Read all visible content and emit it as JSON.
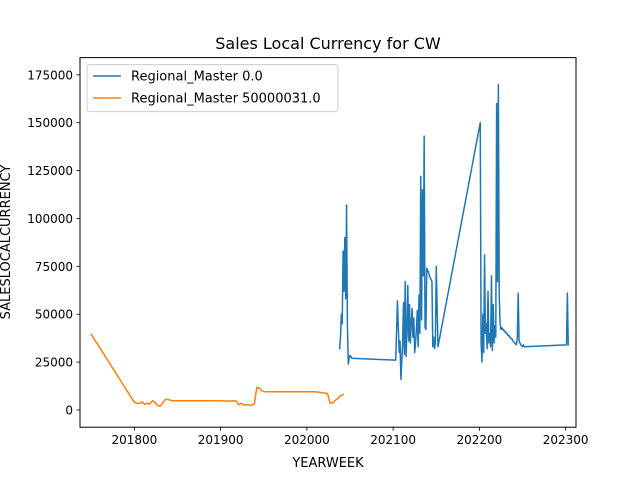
{
  "chart_data": {
    "type": "line",
    "title": "Sales Local Currency for CW",
    "xlabel": "YEARWEEK",
    "ylabel": "SALESLOCALCURRENCY",
    "xlim": [
      201737,
      202312
    ],
    "ylim": [
      -9000,
      184000
    ],
    "xticks": [
      201800,
      201900,
      202000,
      202100,
      202200,
      202300
    ],
    "yticks": [
      0,
      25000,
      50000,
      75000,
      100000,
      125000,
      150000,
      175000
    ],
    "grid": false,
    "legend": {
      "placement": "top-left"
    },
    "series": [
      {
        "name": "Regional_Master 0.0",
        "color": "#1f77b4",
        "x": [
          202038,
          202039,
          202040,
          202041,
          202042,
          202043,
          202044,
          202045,
          202046,
          202047,
          202048,
          202049,
          202050,
          202051,
          202052,
          202103,
          202105,
          202107,
          202108,
          202109,
          202110,
          202111,
          202112,
          202113,
          202114,
          202115,
          202116,
          202117,
          202118,
          202119,
          202120,
          202121,
          202122,
          202123,
          202124,
          202125,
          202126,
          202127,
          202128,
          202129,
          202130,
          202131,
          202132,
          202133,
          202134,
          202135,
          202136,
          202137,
          202138,
          202139,
          202140,
          202141,
          202142,
          202143,
          202144,
          202145,
          202146,
          202147,
          202148,
          202149,
          202150,
          202152,
          202201,
          202202,
          202203,
          202204,
          202205,
          202206,
          202207,
          202208,
          202209,
          202210,
          202211,
          202212,
          202213,
          202214,
          202215,
          202216,
          202217,
          202218,
          202219,
          202220,
          202221,
          202222,
          202223,
          202224,
          202225,
          202226,
          202227,
          202228,
          202229,
          202230,
          202231,
          202232,
          202233,
          202234,
          202235,
          202236,
          202237,
          202238,
          202239,
          202240,
          202241,
          202242,
          202243,
          202244,
          202245,
          202246,
          202247,
          202248,
          202249,
          202250,
          202251,
          202252,
          202301,
          202302,
          202303
        ],
        "y": [
          32000,
          38000,
          50000,
          45000,
          83000,
          62000,
          90000,
          58000,
          107000,
          45000,
          24000,
          27000,
          28500,
          28000,
          27000,
          26000,
          57000,
          30000,
          36000,
          16000,
          25000,
          35000,
          56000,
          29000,
          67000,
          28000,
          42000,
          65000,
          36000,
          55000,
          35000,
          45000,
          53000,
          38000,
          48000,
          30000,
          35000,
          42000,
          52000,
          33000,
          60000,
          40000,
          122000,
          47000,
          115000,
          70000,
          143000,
          43000,
          42000,
          74000,
          73000,
          72000,
          70000,
          69000,
          68000,
          67000,
          33000,
          38000,
          32000,
          35000,
          75000,
          33000,
          150000,
          35000,
          25000,
          50000,
          30000,
          81000,
          40000,
          45000,
          32000,
          62000,
          35000,
          40000,
          33000,
          70000,
          31000,
          55000,
          35000,
          44000,
          38000,
          160000,
          67000,
          170000,
          60000,
          45000,
          42000,
          43000,
          42000,
          42000,
          41000,
          41000,
          40000,
          40000,
          39000,
          39000,
          38000,
          38000,
          37000,
          37000,
          36000,
          35500,
          35000,
          34500,
          34000,
          38000,
          61000,
          36000,
          35000,
          34000,
          33500,
          33000,
          34000,
          33000,
          34000,
          61000,
          34000
        ]
      },
      {
        "name": "Regional_Master 50000031.0",
        "color": "#ff7f0e",
        "x": [
          201750,
          201800,
          201803,
          201806,
          201809,
          201812,
          201815,
          201818,
          201821,
          201824,
          201827,
          201830,
          201833,
          201836,
          201839,
          201842,
          201845,
          201848,
          201851,
          201900,
          201903,
          201906,
          201909,
          201912,
          201915,
          201918,
          201921,
          201924,
          201927,
          201930,
          201933,
          201936,
          201939,
          201942,
          201945,
          201948,
          201951,
          202000,
          202003,
          202006,
          202009,
          202012,
          202015,
          202018,
          202021,
          202024,
          202027,
          202030,
          202033,
          202036,
          202039,
          202042
        ],
        "y": [
          39500,
          4000,
          3500,
          3500,
          4200,
          3000,
          3500,
          3200,
          4800,
          4000,
          2300,
          2000,
          3800,
          5500,
          5500,
          5000,
          4800,
          4800,
          4800,
          4800,
          4700,
          4700,
          4700,
          4700,
          4800,
          4700,
          2700,
          3500,
          2500,
          2800,
          2500,
          2500,
          3000,
          11800,
          11500,
          10000,
          9500,
          9500,
          9500,
          9500,
          9500,
          9400,
          9200,
          9000,
          8800,
          8500,
          3500,
          3800,
          5000,
          6000,
          7500,
          8000
        ]
      }
    ]
  }
}
